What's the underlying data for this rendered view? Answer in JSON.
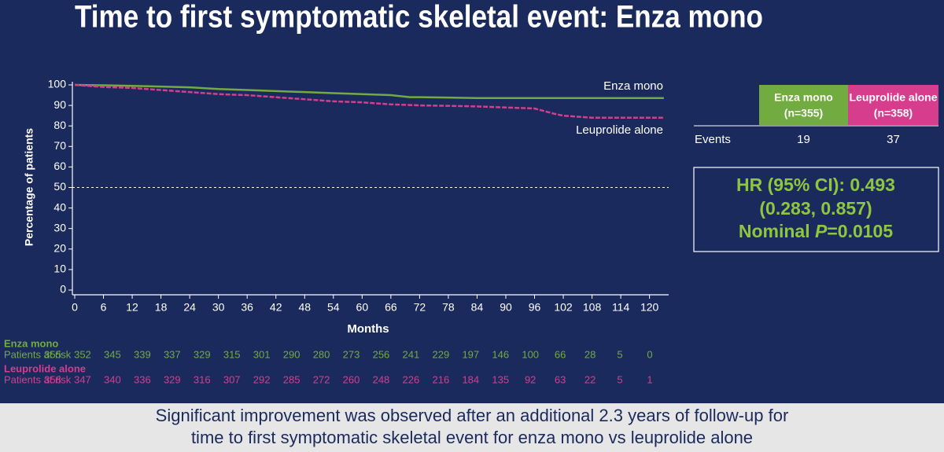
{
  "chart_data": {
    "type": "line",
    "title": "Time to first symptomatic skeletal event: Enza mono",
    "x_label": "Months",
    "y_label": "Percentage of patients",
    "x": [
      0,
      6,
      12,
      18,
      24,
      30,
      36,
      42,
      48,
      54,
      60,
      66,
      70,
      72,
      78,
      84,
      90,
      96,
      100,
      102,
      108,
      114,
      120,
      123
    ],
    "series": [
      {
        "name": "Enza mono",
        "color": "#72ab3f",
        "values": [
          100,
          99.8,
          99.5,
          99.2,
          98.8,
          98,
          97.5,
          97,
          96.5,
          96,
          95.5,
          95,
          94,
          94,
          93.8,
          93.6,
          93.6,
          93.6,
          93.6,
          93.6,
          93.6,
          93.6,
          93.6,
          93.6
        ]
      },
      {
        "name": "Leuprolide alone",
        "color": "#d63d8c",
        "values": [
          100,
          99,
          98.5,
          97.5,
          96.5,
          95.5,
          95,
          94,
          93,
          92,
          91.5,
          90.5,
          90.2,
          90,
          89.8,
          89.5,
          89,
          88.5,
          86,
          85,
          84,
          84,
          84,
          84
        ]
      }
    ],
    "xlim": [
      0,
      124
    ],
    "xticks": [
      0,
      6,
      12,
      18,
      24,
      30,
      36,
      42,
      48,
      54,
      60,
      66,
      72,
      78,
      84,
      90,
      96,
      102,
      108,
      114,
      120
    ],
    "ylim": [
      0,
      100
    ],
    "yticks": [
      0,
      10,
      20,
      30,
      40,
      50,
      60,
      70,
      80,
      90,
      100
    ],
    "reference_line": 50
  },
  "risk_table": {
    "rows": [
      {
        "name": "Enza mono",
        "label": "Patients at risk",
        "values": [
          355,
          352,
          345,
          339,
          337,
          329,
          315,
          301,
          290,
          280,
          273,
          256,
          241,
          229,
          197,
          146,
          100,
          66,
          28,
          5,
          0
        ]
      },
      {
        "name": "Leuprolide alone",
        "label": "Patients at risk",
        "values": [
          358,
          347,
          340,
          336,
          329,
          316,
          307,
          292,
          285,
          272,
          260,
          248,
          226,
          216,
          184,
          135,
          92,
          63,
          22,
          5,
          1
        ]
      }
    ]
  },
  "events_table": {
    "headers": [
      [
        "Enza mono",
        "(n=355)"
      ],
      [
        "Leuprolide alone",
        "(n=358)"
      ]
    ],
    "row_label": "Events",
    "values": [
      19,
      37
    ]
  },
  "hr_box": {
    "line1": "HR (95% CI): 0.493",
    "line2": "(0.283, 0.857)",
    "line3_prefix": "Nominal ",
    "line3_italic": "P",
    "line3_suffix": "=0.0105"
  },
  "footer": [
    "Significant improvement was observed after an additional 2.3 years of follow-up for",
    "time to first symptomatic skeletal event for enza mono vs leuprolide alone"
  ]
}
